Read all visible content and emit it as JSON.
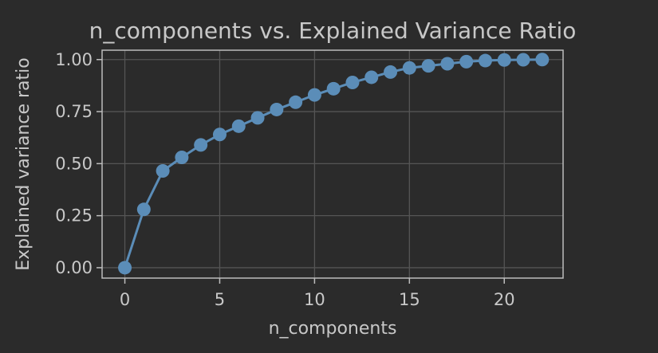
{
  "chart_data": {
    "type": "line",
    "title": "n_components vs. Explained Variance Ratio",
    "xlabel": "n_components",
    "ylabel": "Explained variance ratio",
    "xlim": [
      -1.2,
      23.1
    ],
    "ylim": [
      -0.05,
      1.045
    ],
    "xticks": [
      0,
      5,
      10,
      15,
      20
    ],
    "xtick_labels": [
      "0",
      "5",
      "10",
      "15",
      "20"
    ],
    "yticks": [
      0.0,
      0.25,
      0.5,
      0.75,
      1.0
    ],
    "ytick_labels": [
      "0.00",
      "0.25",
      "0.50",
      "0.75",
      "1.00"
    ],
    "grid": true,
    "legend": "none",
    "series": [
      {
        "x": [
          0,
          1,
          2,
          3,
          4,
          5,
          6,
          7,
          8,
          9,
          10,
          11,
          12,
          13,
          14,
          15,
          16,
          17,
          18,
          19,
          20,
          21,
          22
        ],
        "values": [
          0.0,
          0.28,
          0.465,
          0.53,
          0.59,
          0.64,
          0.68,
          0.72,
          0.76,
          0.795,
          0.83,
          0.86,
          0.89,
          0.915,
          0.94,
          0.96,
          0.97,
          0.98,
          0.99,
          0.995,
          0.998,
          0.999,
          1.0
        ],
        "color": "#5b8db8",
        "marker": "circle"
      }
    ]
  },
  "colors": {
    "background": "#2b2b2b",
    "text": "#c8c8c8",
    "grid": "#555555",
    "axes": "#bdbdbd",
    "series": "#5b8db8"
  }
}
